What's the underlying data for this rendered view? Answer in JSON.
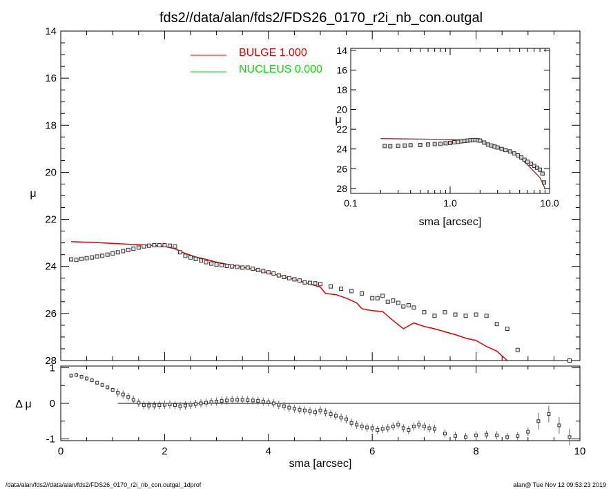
{
  "title": "fds2//data/alan/fds2/FDS26_0170_r2i_nb_con.outgal",
  "footer": {
    "left": "/data/alan/fds2//data/alan/fds2/FDS26_0170_r2i_nb_con.outgal_1dprof",
    "right": "alan@  Tue Nov 12 09:53:23 2019"
  },
  "legend": [
    {
      "name": "BULGE  1.000",
      "color": "#e00000"
    },
    {
      "name": "NUCLEUS  0.000",
      "color": "#00dd00"
    }
  ],
  "chart_data": [
    {
      "id": "main",
      "type": "scatter",
      "xlabel": "",
      "ylabel": "μ",
      "xlim": [
        0,
        10
      ],
      "ylim": [
        28,
        14
      ],
      "yticks": [
        14,
        16,
        18,
        20,
        22,
        24,
        26,
        28
      ],
      "series": [
        {
          "name": "BULGE  1.000",
          "kind": "line",
          "color": "#e00000",
          "x": [
            0.2,
            0.5,
            0.8,
            1.1,
            1.4,
            1.7,
            2.0,
            2.2,
            2.4,
            2.6,
            2.8,
            3.0,
            3.3,
            3.6,
            3.9,
            4.2,
            4.5,
            4.8,
            5.0,
            5.1,
            5.3,
            5.5,
            5.7,
            5.8,
            6.0,
            6.2,
            6.4,
            6.6,
            6.8,
            7.0,
            7.2,
            7.4,
            7.6,
            7.8,
            8.0,
            8.2,
            8.4,
            8.6
          ],
          "y": [
            22.95,
            22.97,
            23.0,
            23.03,
            23.07,
            23.1,
            23.15,
            23.25,
            23.45,
            23.6,
            23.7,
            23.82,
            23.95,
            24.08,
            24.22,
            24.38,
            24.55,
            24.75,
            24.88,
            25.15,
            25.2,
            25.35,
            25.55,
            25.8,
            25.88,
            25.92,
            26.3,
            26.65,
            26.4,
            26.55,
            26.65,
            26.78,
            26.9,
            27.05,
            27.15,
            27.4,
            27.6,
            28.0
          ]
        },
        {
          "name": "",
          "kind": "markers",
          "color": "#333333",
          "x": [
            0.2,
            0.3,
            0.4,
            0.5,
            0.6,
            0.7,
            0.8,
            0.9,
            1.0,
            1.1,
            1.2,
            1.3,
            1.4,
            1.5,
            1.6,
            1.7,
            1.8,
            1.9,
            2.0,
            2.1,
            2.2,
            2.3,
            2.4,
            2.5,
            2.6,
            2.7,
            2.8,
            2.9,
            3.0,
            3.1,
            3.2,
            3.3,
            3.4,
            3.5,
            3.6,
            3.7,
            3.8,
            3.9,
            4.0,
            4.1,
            4.2,
            4.3,
            4.4,
            4.5,
            4.6,
            4.7,
            4.8,
            4.9,
            5.0,
            5.2,
            5.4,
            5.6,
            5.8,
            6.0,
            6.1,
            6.2,
            6.3,
            6.4,
            6.5,
            6.6,
            6.7,
            6.8,
            7.0,
            7.2,
            7.4,
            7.6,
            7.8,
            8.0,
            8.2,
            8.4,
            8.6,
            8.8,
            9.8
          ],
          "y": [
            23.7,
            23.72,
            23.68,
            23.65,
            23.62,
            23.58,
            23.55,
            23.5,
            23.45,
            23.4,
            23.35,
            23.3,
            23.25,
            23.2,
            23.15,
            23.12,
            23.1,
            23.1,
            23.1,
            23.12,
            23.15,
            23.4,
            23.55,
            23.62,
            23.68,
            23.75,
            23.82,
            23.88,
            23.92,
            23.95,
            23.98,
            24.0,
            24.02,
            24.05,
            24.05,
            24.1,
            24.15,
            24.2,
            24.25,
            24.3,
            24.38,
            24.45,
            24.5,
            24.55,
            24.6,
            24.68,
            24.7,
            24.72,
            24.75,
            24.85,
            24.95,
            25.05,
            25.15,
            25.35,
            25.35,
            25.25,
            25.5,
            25.45,
            25.55,
            25.7,
            25.65,
            25.75,
            25.95,
            26.1,
            25.95,
            26.05,
            26.1,
            26.05,
            26.1,
            26.45,
            26.65,
            27.55,
            28.0
          ]
        }
      ]
    },
    {
      "id": "residual",
      "type": "scatter",
      "xlabel": "sma [arcsec]",
      "ylabel": "Δ μ",
      "xlim": [
        0,
        10
      ],
      "ylim": [
        -1.05,
        1.05
      ],
      "xticks": [
        0,
        2,
        4,
        6,
        8,
        10
      ],
      "yticks": [
        -1,
        0,
        1
      ],
      "series": [
        {
          "name": "",
          "kind": "markers",
          "color": "#333333",
          "x": [
            0.2,
            0.3,
            0.4,
            0.5,
            0.6,
            0.7,
            0.8,
            0.9,
            1.0,
            1.1,
            1.2,
            1.3,
            1.4,
            1.5,
            1.6,
            1.7,
            1.8,
            1.9,
            2.0,
            2.1,
            2.2,
            2.3,
            2.4,
            2.5,
            2.6,
            2.7,
            2.8,
            2.9,
            3.0,
            3.1,
            3.2,
            3.3,
            3.4,
            3.5,
            3.6,
            3.7,
            3.8,
            3.9,
            4.0,
            4.1,
            4.2,
            4.3,
            4.4,
            4.5,
            4.6,
            4.7,
            4.8,
            4.9,
            5.0,
            5.1,
            5.2,
            5.3,
            5.4,
            5.5,
            5.6,
            5.7,
            5.8,
            5.9,
            6.0,
            6.1,
            6.2,
            6.3,
            6.4,
            6.5,
            6.6,
            6.7,
            6.8,
            6.9,
            7.0,
            7.1,
            7.2,
            7.4,
            7.6,
            7.8,
            8.0,
            8.2,
            8.4,
            8.6,
            8.8,
            9.0,
            9.2,
            9.4,
            9.6,
            9.8
          ],
          "y": [
            0.78,
            0.8,
            0.75,
            0.7,
            0.65,
            0.58,
            0.52,
            0.45,
            0.38,
            0.3,
            0.25,
            0.18,
            0.1,
            0.02,
            -0.05,
            -0.06,
            -0.06,
            -0.05,
            -0.04,
            -0.03,
            -0.05,
            -0.08,
            -0.06,
            -0.04,
            -0.02,
            0.0,
            0.02,
            0.04,
            0.05,
            0.07,
            0.08,
            0.1,
            0.1,
            0.1,
            0.09,
            0.08,
            0.07,
            0.05,
            0.03,
            0.0,
            -0.04,
            -0.08,
            -0.12,
            -0.15,
            -0.18,
            -0.2,
            -0.22,
            -0.25,
            -0.2,
            -0.25,
            -0.3,
            -0.35,
            -0.4,
            -0.45,
            -0.55,
            -0.6,
            -0.65,
            -0.68,
            -0.7,
            -0.75,
            -0.72,
            -0.7,
            -0.65,
            -0.6,
            -0.7,
            -0.75,
            -0.65,
            -0.6,
            -0.65,
            -0.7,
            -0.72,
            -0.85,
            -0.92,
            -0.95,
            -0.9,
            -0.88,
            -0.9,
            -0.95,
            -0.92,
            -0.8,
            -0.5,
            -0.3,
            -0.62,
            -0.95
          ]
        }
      ]
    },
    {
      "id": "inset",
      "type": "scatter",
      "xlabel": "sma [arcsec]",
      "ylabel": "μ",
      "xscale": "log",
      "xlim": [
        0.1,
        10
      ],
      "ylim": [
        28.5,
        13.8
      ],
      "xticks": [
        "0.1",
        "1.0",
        "10.0"
      ],
      "yticks": [
        14,
        16,
        18,
        20,
        22,
        24,
        26,
        28
      ],
      "series": [
        {
          "name": "",
          "kind": "line",
          "color": "#7a1a1a",
          "x": [
            0.2,
            0.3,
            0.5,
            0.8,
            1.0,
            1.3,
            1.6,
            1.8,
            2.0,
            2.5,
            3.0,
            3.5,
            4.0,
            5.0,
            6.0,
            7.0,
            8.0,
            9.0
          ],
          "y": [
            22.95,
            22.97,
            22.99,
            23.02,
            23.05,
            23.08,
            23.12,
            23.15,
            23.2,
            23.6,
            23.85,
            24.05,
            24.3,
            24.85,
            25.6,
            26.3,
            26.9,
            28.0
          ]
        },
        {
          "name": "",
          "kind": "markers",
          "color": "#333333",
          "x": [
            0.22,
            0.25,
            0.3,
            0.35,
            0.4,
            0.5,
            0.6,
            0.7,
            0.8,
            0.9,
            1.0,
            1.1,
            1.2,
            1.3,
            1.4,
            1.5,
            1.6,
            1.7,
            1.8,
            1.9,
            2.0,
            2.2,
            2.4,
            2.6,
            2.8,
            3.0,
            3.3,
            3.6,
            4.0,
            4.4,
            4.8,
            5.2,
            5.6,
            6.0,
            6.5,
            7.0,
            7.5,
            8.0,
            8.5,
            8.8
          ],
          "y": [
            23.7,
            23.72,
            23.68,
            23.65,
            23.62,
            23.6,
            23.55,
            23.5,
            23.48,
            23.42,
            23.38,
            23.32,
            23.28,
            23.22,
            23.18,
            23.15,
            23.12,
            23.1,
            23.1,
            23.12,
            23.15,
            23.35,
            23.55,
            23.65,
            23.75,
            23.85,
            24.0,
            24.1,
            24.25,
            24.45,
            24.65,
            24.85,
            25.1,
            25.3,
            25.5,
            25.7,
            25.9,
            26.1,
            26.5,
            27.4
          ]
        }
      ]
    }
  ]
}
